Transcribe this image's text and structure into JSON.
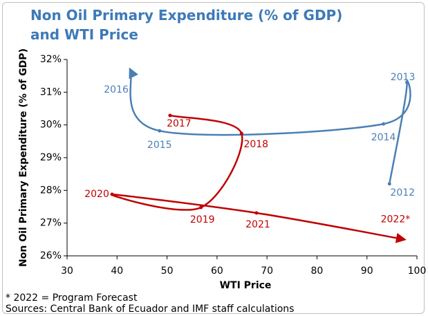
{
  "chart_data": {
    "type": "scatter-line",
    "title": "Non Oil Primary Expenditure (% of GDP) and WTI Price",
    "x_label": "WTI Price",
    "y_label": "Non Oil Primary Expenditure (% of GDP)",
    "notes": [
      "* 2022  = Program Forecast",
      "Sources: Central Bank of Ecuador and IMF staff calculations"
    ],
    "xlim": [
      30,
      100
    ],
    "xticks": [
      30,
      40,
      50,
      60,
      70,
      80,
      90,
      100
    ],
    "ylim": [
      26,
      32
    ],
    "yticks": [
      {
        "value": 26,
        "label": "26%"
      },
      {
        "value": 27,
        "label": "27%"
      },
      {
        "value": 28,
        "label": "28%"
      },
      {
        "value": 29,
        "label": "29%"
      },
      {
        "value": 30,
        "label": "30%"
      },
      {
        "value": 31,
        "label": "31%"
      },
      {
        "value": 32,
        "label": "32%"
      }
    ],
    "series": [
      {
        "color": "#4a7fb5",
        "labels": [
          "2012",
          "2013",
          "2014",
          "2015",
          "2016"
        ],
        "x": [
          94.5,
          98,
          93.3,
          48.5,
          42.6
        ],
        "values": [
          28.2,
          31.3,
          30.03,
          29.82,
          31.7
        ]
      },
      {
        "color": "#c00000",
        "labels": [
          "2017",
          "2018",
          "2019",
          "2020",
          "2021",
          "2022*"
        ],
        "x": [
          50.6,
          64.9,
          56.8,
          39,
          67.9,
          97.5
        ],
        "values": [
          30.29,
          29.74,
          27.48,
          27.88,
          27.31,
          26.5
        ]
      }
    ]
  }
}
